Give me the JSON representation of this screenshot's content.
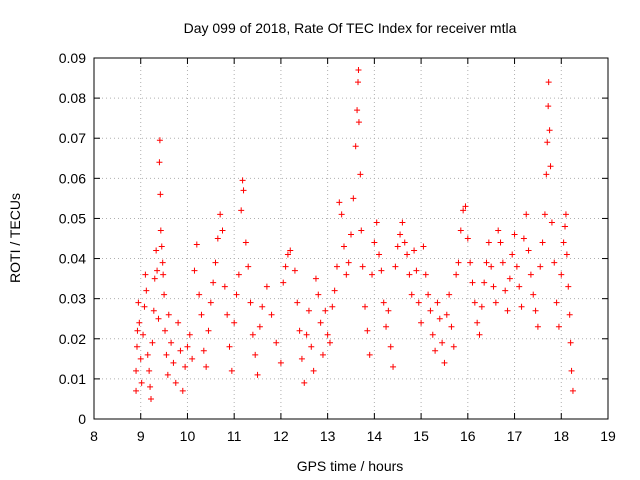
{
  "chart_data": {
    "type": "scatter",
    "title": "Day 099 of 2018, Rate Of TEC Index for receiver mtla",
    "xlabel": "GPS time / hours",
    "ylabel": "ROTI / TECUs",
    "xlim": [
      8,
      19
    ],
    "ylim": [
      0,
      0.09
    ],
    "x_ticks": [
      "8",
      "9",
      "10",
      "11",
      "12",
      "13",
      "14",
      "15",
      "16",
      "17",
      "18",
      "19"
    ],
    "y_ticks": [
      "0",
      "0.01",
      "0.02",
      "0.03",
      "0.04",
      "0.05",
      "0.06",
      "0.07",
      "0.08",
      "0.09"
    ],
    "grid": true,
    "marker": "+",
    "color": "#ff0000",
    "series": [
      {
        "name": "ROTI",
        "points": [
          [
            8.9,
            0.007
          ],
          [
            8.9,
            0.012
          ],
          [
            8.92,
            0.018
          ],
          [
            8.93,
            0.022
          ],
          [
            8.95,
            0.029
          ],
          [
            8.97,
            0.024
          ],
          [
            9.0,
            0.015
          ],
          [
            9.02,
            0.009
          ],
          [
            9.05,
            0.021
          ],
          [
            9.08,
            0.028
          ],
          [
            9.1,
            0.036
          ],
          [
            9.12,
            0.032
          ],
          [
            9.15,
            0.016
          ],
          [
            9.18,
            0.012
          ],
          [
            9.2,
            0.008
          ],
          [
            9.22,
            0.005
          ],
          [
            9.25,
            0.019
          ],
          [
            9.28,
            0.027
          ],
          [
            9.3,
            0.035
          ],
          [
            9.33,
            0.042
          ],
          [
            9.35,
            0.037
          ],
          [
            9.38,
            0.025
          ],
          [
            9.4,
            0.064
          ],
          [
            9.41,
            0.0695
          ],
          [
            9.42,
            0.056
          ],
          [
            9.43,
            0.047
          ],
          [
            9.45,
            0.043
          ],
          [
            9.47,
            0.039
          ],
          [
            9.48,
            0.036
          ],
          [
            9.5,
            0.031
          ],
          [
            9.52,
            0.022
          ],
          [
            9.55,
            0.016
          ],
          [
            9.58,
            0.011
          ],
          [
            9.6,
            0.026
          ],
          [
            9.65,
            0.019
          ],
          [
            9.7,
            0.014
          ],
          [
            9.75,
            0.009
          ],
          [
            9.8,
            0.024
          ],
          [
            9.85,
            0.017
          ],
          [
            9.9,
            0.007
          ],
          [
            9.95,
            0.013
          ],
          [
            10.0,
            0.018
          ],
          [
            10.05,
            0.021
          ],
          [
            10.1,
            0.015
          ],
          [
            10.15,
            0.037
          ],
          [
            10.2,
            0.0435
          ],
          [
            10.25,
            0.031
          ],
          [
            10.3,
            0.026
          ],
          [
            10.35,
            0.017
          ],
          [
            10.4,
            0.013
          ],
          [
            10.45,
            0.022
          ],
          [
            10.5,
            0.029
          ],
          [
            10.55,
            0.034
          ],
          [
            10.6,
            0.039
          ],
          [
            10.65,
            0.045
          ],
          [
            10.7,
            0.051
          ],
          [
            10.75,
            0.047
          ],
          [
            10.8,
            0.033
          ],
          [
            10.85,
            0.026
          ],
          [
            10.9,
            0.018
          ],
          [
            10.95,
            0.012
          ],
          [
            11.0,
            0.024
          ],
          [
            11.05,
            0.031
          ],
          [
            11.1,
            0.036
          ],
          [
            11.15,
            0.052
          ],
          [
            11.18,
            0.0595
          ],
          [
            11.2,
            0.057
          ],
          [
            11.25,
            0.044
          ],
          [
            11.3,
            0.038
          ],
          [
            11.35,
            0.029
          ],
          [
            11.4,
            0.021
          ],
          [
            11.45,
            0.016
          ],
          [
            11.5,
            0.011
          ],
          [
            11.55,
            0.023
          ],
          [
            11.6,
            0.028
          ],
          [
            11.7,
            0.033
          ],
          [
            11.8,
            0.026
          ],
          [
            11.9,
            0.019
          ],
          [
            12.0,
            0.014
          ],
          [
            12.05,
            0.034
          ],
          [
            12.1,
            0.038
          ],
          [
            12.15,
            0.041
          ],
          [
            12.2,
            0.042
          ],
          [
            12.3,
            0.037
          ],
          [
            12.35,
            0.029
          ],
          [
            12.4,
            0.022
          ],
          [
            12.45,
            0.015
          ],
          [
            12.5,
            0.009
          ],
          [
            12.55,
            0.021
          ],
          [
            12.6,
            0.027
          ],
          [
            12.65,
            0.018
          ],
          [
            12.7,
            0.012
          ],
          [
            12.75,
            0.035
          ],
          [
            12.8,
            0.031
          ],
          [
            12.85,
            0.024
          ],
          [
            12.9,
            0.016
          ],
          [
            12.95,
            0.027
          ],
          [
            13.0,
            0.021
          ],
          [
            13.05,
            0.019
          ],
          [
            13.1,
            0.028
          ],
          [
            13.15,
            0.032
          ],
          [
            13.2,
            0.038
          ],
          [
            13.25,
            0.054
          ],
          [
            13.3,
            0.051
          ],
          [
            13.35,
            0.043
          ],
          [
            13.4,
            0.036
          ],
          [
            13.45,
            0.039
          ],
          [
            13.5,
            0.046
          ],
          [
            13.55,
            0.055
          ],
          [
            13.6,
            0.068
          ],
          [
            13.63,
            0.077
          ],
          [
            13.65,
            0.084
          ],
          [
            13.66,
            0.087
          ],
          [
            13.67,
            0.074
          ],
          [
            13.7,
            0.061
          ],
          [
            13.72,
            0.047
          ],
          [
            13.75,
            0.038
          ],
          [
            13.8,
            0.028
          ],
          [
            13.85,
            0.022
          ],
          [
            13.9,
            0.016
          ],
          [
            13.95,
            0.036
          ],
          [
            14.0,
            0.044
          ],
          [
            14.05,
            0.049
          ],
          [
            14.1,
            0.041
          ],
          [
            14.15,
            0.037
          ],
          [
            14.2,
            0.029
          ],
          [
            14.25,
            0.023
          ],
          [
            14.3,
            0.027
          ],
          [
            14.35,
            0.018
          ],
          [
            14.4,
            0.013
          ],
          [
            14.45,
            0.038
          ],
          [
            14.5,
            0.043
          ],
          [
            14.55,
            0.046
          ],
          [
            14.6,
            0.049
          ],
          [
            14.65,
            0.044
          ],
          [
            14.7,
            0.041
          ],
          [
            14.75,
            0.036
          ],
          [
            14.8,
            0.031
          ],
          [
            14.85,
            0.042
          ],
          [
            14.9,
            0.037
          ],
          [
            14.95,
            0.029
          ],
          [
            15.0,
            0.024
          ],
          [
            15.05,
            0.043
          ],
          [
            15.1,
            0.036
          ],
          [
            15.15,
            0.031
          ],
          [
            15.2,
            0.027
          ],
          [
            15.25,
            0.021
          ],
          [
            15.3,
            0.017
          ],
          [
            15.35,
            0.029
          ],
          [
            15.4,
            0.025
          ],
          [
            15.45,
            0.019
          ],
          [
            15.5,
            0.014
          ],
          [
            15.55,
            0.026
          ],
          [
            15.6,
            0.031
          ],
          [
            15.65,
            0.023
          ],
          [
            15.7,
            0.018
          ],
          [
            15.75,
            0.036
          ],
          [
            15.8,
            0.039
          ],
          [
            15.85,
            0.047
          ],
          [
            15.9,
            0.052
          ],
          [
            15.95,
            0.053
          ],
          [
            16.0,
            0.045
          ],
          [
            16.05,
            0.039
          ],
          [
            16.1,
            0.034
          ],
          [
            16.15,
            0.029
          ],
          [
            16.2,
            0.024
          ],
          [
            16.25,
            0.021
          ],
          [
            16.3,
            0.028
          ],
          [
            16.35,
            0.034
          ],
          [
            16.4,
            0.039
          ],
          [
            16.45,
            0.044
          ],
          [
            16.5,
            0.038
          ],
          [
            16.55,
            0.033
          ],
          [
            16.6,
            0.029
          ],
          [
            16.65,
            0.047
          ],
          [
            16.7,
            0.044
          ],
          [
            16.75,
            0.039
          ],
          [
            16.8,
            0.032
          ],
          [
            16.85,
            0.027
          ],
          [
            16.9,
            0.035
          ],
          [
            16.95,
            0.041
          ],
          [
            17.0,
            0.046
          ],
          [
            17.05,
            0.038
          ],
          [
            17.1,
            0.033
          ],
          [
            17.15,
            0.028
          ],
          [
            17.2,
            0.045
          ],
          [
            17.25,
            0.051
          ],
          [
            17.3,
            0.042
          ],
          [
            17.35,
            0.036
          ],
          [
            17.4,
            0.031
          ],
          [
            17.45,
            0.027
          ],
          [
            17.5,
            0.023
          ],
          [
            17.55,
            0.038
          ],
          [
            17.6,
            0.044
          ],
          [
            17.65,
            0.051
          ],
          [
            17.68,
            0.061
          ],
          [
            17.7,
            0.069
          ],
          [
            17.72,
            0.078
          ],
          [
            17.73,
            0.084
          ],
          [
            17.75,
            0.072
          ],
          [
            17.77,
            0.063
          ],
          [
            17.8,
            0.049
          ],
          [
            17.85,
            0.039
          ],
          [
            17.9,
            0.029
          ],
          [
            17.95,
            0.023
          ],
          [
            18.0,
            0.036
          ],
          [
            18.05,
            0.044
          ],
          [
            18.08,
            0.048
          ],
          [
            18.1,
            0.051
          ],
          [
            18.12,
            0.041
          ],
          [
            18.15,
            0.033
          ],
          [
            18.18,
            0.026
          ],
          [
            18.2,
            0.019
          ],
          [
            18.22,
            0.012
          ],
          [
            18.25,
            0.007
          ]
        ]
      }
    ]
  }
}
